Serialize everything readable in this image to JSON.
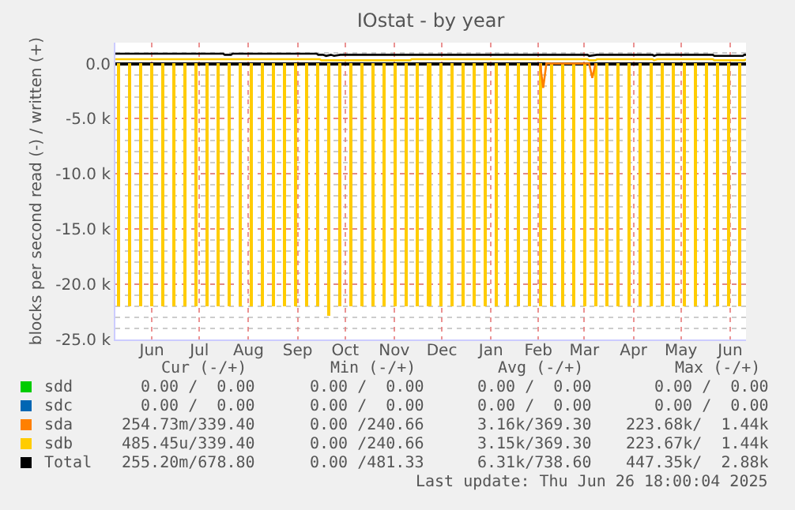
{
  "chart_data": {
    "type": "line",
    "title": "IOstat - by year",
    "ylabel": "blocks per second read (-) / written (+)",
    "xlim": [
      "2024-05-24",
      "2025-06-26"
    ],
    "xticks": [
      {
        "value": "2024-06-16",
        "label": "Jun"
      },
      {
        "value": "2024-07-16",
        "label": "Jul"
      },
      {
        "value": "2024-08-16",
        "label": "Aug"
      },
      {
        "value": "2024-09-16",
        "label": "Sep"
      },
      {
        "value": "2024-10-16",
        "label": "Oct"
      },
      {
        "value": "2024-11-16",
        "label": "Nov"
      },
      {
        "value": "2024-12-16",
        "label": "Dec"
      },
      {
        "value": "2025-01-16",
        "label": "Jan"
      },
      {
        "value": "2025-02-15",
        "label": "Feb"
      },
      {
        "value": "2025-03-16",
        "label": "Mar"
      },
      {
        "value": "2025-04-16",
        "label": "Apr"
      },
      {
        "value": "2025-05-16",
        "label": "May"
      },
      {
        "value": "2025-06-16",
        "label": "Jun"
      }
    ],
    "ylim": [
      -25000,
      1900
    ],
    "yticks": [
      {
        "value": 0,
        "label": "0.0"
      },
      {
        "value": -5000,
        "label": "-5.0 k"
      },
      {
        "value": -10000,
        "label": "-10.0 k"
      },
      {
        "value": -15000,
        "label": "-15.0 k"
      },
      {
        "value": -20000,
        "label": "-20.0 k"
      },
      {
        "value": -25000,
        "label": "-25.0 k"
      }
    ],
    "grid": true,
    "legend": "bottom",
    "series": [
      {
        "name": "sdd",
        "color": "#00cc00"
      },
      {
        "name": "sdc",
        "color": "#0066b3"
      },
      {
        "name": "sda",
        "color": "#ff8000",
        "x": [
          "2025-02-16",
          "2025-02-18",
          "2025-02-20",
          "2025-03-19",
          "2025-03-21",
          "2025-03-23"
        ],
        "values": [
          0,
          -2200,
          0,
          0,
          -1300,
          0
        ]
      },
      {
        "name": "sdb",
        "color": "#ffcc00",
        "x": [
          "2024-05-24",
          "2024-09-30",
          "2024-10-01",
          "2024-11-26",
          "2024-11-27",
          "2025-03-18",
          "2025-03-19",
          "2025-03-23",
          "2025-03-24",
          "2025-04-28",
          "2025-04-29",
          "2025-05-01",
          "2025-06-05",
          "2025-06-06",
          "2025-06-25",
          "2025-06-26"
        ],
        "values": [
          400,
          400,
          300,
          300,
          400,
          400,
          300,
          300,
          400,
          400,
          300,
          400,
          400,
          300,
          300,
          400
        ]
      },
      {
        "name": "Total",
        "color": "#000000",
        "x": [
          "2024-05-24",
          "2024-07-31",
          "2024-08-01",
          "2024-08-05",
          "2024-08-06",
          "2024-09-28",
          "2024-09-29",
          "2024-10-02",
          "2024-10-04",
          "2024-10-07",
          "2024-10-09",
          "2024-10-13",
          "2024-10-15",
          "2025-03-18",
          "2025-03-19",
          "2025-03-24",
          "2025-04-28",
          "2025-04-29",
          "2025-05-01",
          "2025-06-05",
          "2025-06-06",
          "2025-06-24",
          "2025-06-25",
          "2025-06-26"
        ],
        "values": [
          900,
          900,
          800,
          800,
          900,
          900,
          800,
          800,
          700,
          800,
          700,
          800,
          800,
          800,
          700,
          800,
          800,
          700,
          800,
          800,
          700,
          700,
          800,
          800
        ]
      },
      {
        "type": "bar",
        "color": "#ffcc00",
        "x": [
          "2024-05-26",
          "2024-06-02",
          "2024-06-09",
          "2024-06-16",
          "2024-06-23",
          "2024-06-30",
          "2024-07-07",
          "2024-07-14",
          "2024-07-21",
          "2024-07-28",
          "2024-08-04",
          "2024-08-11",
          "2024-08-18",
          "2024-08-25",
          "2024-09-01",
          "2024-09-08",
          "2024-09-15",
          "2024-09-22",
          "2024-09-29",
          "2024-10-06",
          "2024-10-13",
          "2024-10-20",
          "2024-10-27",
          "2024-11-03",
          "2024-11-10",
          "2024-11-17",
          "2024-11-24",
          "2024-12-01",
          "2024-12-08",
          "2024-12-15",
          "2024-12-22",
          "2024-12-29",
          "2025-01-05",
          "2025-01-12",
          "2025-01-19",
          "2025-01-26",
          "2025-02-02",
          "2025-02-09",
          "2025-02-16",
          "2025-02-23",
          "2025-03-02",
          "2025-03-09",
          "2025-03-16",
          "2025-03-23",
          "2025-03-30",
          "2025-04-06",
          "2025-04-13",
          "2025-04-20",
          "2025-04-27",
          "2025-05-04",
          "2025-05-11",
          "2025-05-18",
          "2025-05-25",
          "2025-06-01",
          "2025-06-08",
          "2025-06-15",
          "2025-06-22"
        ],
        "values": [
          -22000,
          -22000,
          -22000,
          -22000,
          -22000,
          -22000,
          -22000,
          -22000,
          -22000,
          -22000,
          -22000,
          -22000,
          -22000,
          -22000,
          -22000,
          -22000,
          -22000,
          -22000,
          -22000,
          -22900,
          -22000,
          -22000,
          -22000,
          -22000,
          -22000,
          -22000,
          -22000,
          -22000,
          -22000,
          -22000,
          -22000,
          -22000,
          -22000,
          -22000,
          -22000,
          -22000,
          -22000,
          -22000,
          -22000,
          -22000,
          -22000,
          -22000,
          -22000,
          -22000,
          -22000,
          -22000,
          -22000,
          -22000,
          -22000,
          -22000,
          -22000,
          -22000,
          -22000,
          -22000,
          -22000,
          -22000,
          -22000
        ]
      }
    ],
    "annotations": [
      "Cur (-/+)",
      "Min (-/+)",
      "Avg (-/+)",
      "Max (-/+)",
      "0.00 /  0.00",
      "0.00 /  0.00",
      "0.00 /  0.00",
      "0.00 /  0.00",
      "0.00 /  0.00",
      "0.00 /  0.00",
      "0.00 /  0.00",
      "0.00 /  0.00",
      "254.73m/339.40",
      "0.00 /240.66",
      "3.16k/369.30",
      "223.68k/  1.44k",
      "485.45u/339.40",
      "0.00 /240.66",
      "3.15k/369.30",
      "223.67k/  1.44k",
      "255.20m/678.80",
      "0.00 /481.33",
      "6.31k/738.60",
      "447.35k/  2.88k",
      "Last update: Thu Jun 26 18:00:04 2025"
    ]
  }
}
